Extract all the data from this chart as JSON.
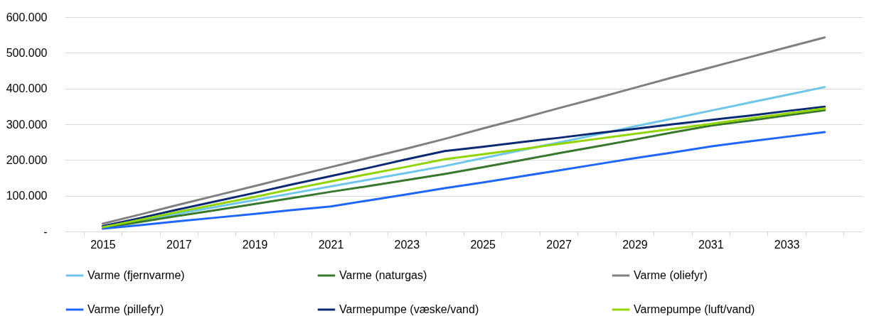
{
  "chart_data": {
    "type": "line",
    "categories": [
      "2015",
      null,
      "2017",
      null,
      "2019",
      null,
      "2021",
      null,
      "2023",
      null,
      "2025",
      null,
      "2027",
      null,
      "2029",
      null,
      "2031",
      null,
      "2033",
      null
    ],
    "series": [
      {
        "name": "Varme (fjernvarme)",
        "color": "#6ec6ea",
        "values": [
          12000,
          31000,
          50000,
          69000,
          88000,
          107000,
          126000,
          145000,
          164000,
          183000,
          205000,
          227000,
          249000,
          271000,
          294000,
          316000,
          338000,
          360000,
          382000,
          404000
        ]
      },
      {
        "name": "Varme (naturgas)",
        "color": "#37782c",
        "values": [
          10000,
          27000,
          44000,
          60000,
          77000,
          94000,
          111000,
          127000,
          144000,
          161000,
          180000,
          199000,
          219000,
          238000,
          257000,
          277000,
          296000,
          310000,
          325000,
          339000
        ]
      },
      {
        "name": "Varme (oliefyr)",
        "color": "#808080",
        "values": [
          22000,
          48000,
          75000,
          101000,
          127000,
          154000,
          180000,
          206000,
          232000,
          259000,
          288000,
          316000,
          345000,
          373000,
          402000,
          431000,
          459000,
          487000,
          515000,
          543000
        ]
      },
      {
        "name": "Varme (pillefyr)",
        "color": "#1f66ff",
        "values": [
          8000,
          18000,
          29000,
          39000,
          49000,
          60000,
          70000,
          87000,
          104000,
          121000,
          137000,
          154000,
          171000,
          188000,
          205000,
          221000,
          238000,
          252000,
          265000,
          278000
        ]
      },
      {
        "name": "Varmepumpe (væske/vand)",
        "color": "#0c2a74",
        "values": [
          15000,
          38000,
          62000,
          85000,
          108000,
          132000,
          155000,
          178000,
          202000,
          225000,
          237000,
          250000,
          262000,
          275000,
          287000,
          300000,
          312000,
          324000,
          337000,
          349000
        ]
      },
      {
        "name": "Varmepumpe (luft/vand)",
        "color": "#92d400",
        "values": [
          12000,
          33000,
          55000,
          76000,
          97000,
          119000,
          140000,
          161000,
          181000,
          202000,
          216000,
          230000,
          245000,
          259000,
          273000,
          287000,
          301000,
          316000,
          330000,
          344000
        ]
      }
    ],
    "ylim": [
      0,
      600000
    ],
    "yticks": [
      {
        "value": 0,
        "label": "-"
      },
      {
        "value": 100000,
        "label": "100.000"
      },
      {
        "value": 200000,
        "label": "200.000"
      },
      {
        "value": 300000,
        "label": "300.000"
      },
      {
        "value": 400000,
        "label": "400.000"
      },
      {
        "value": 500000,
        "label": "500.000"
      },
      {
        "value": 600000,
        "label": "600.000"
      }
    ],
    "grid": "y",
    "legend": "bottom",
    "marker": "none",
    "line_style": "solid"
  }
}
